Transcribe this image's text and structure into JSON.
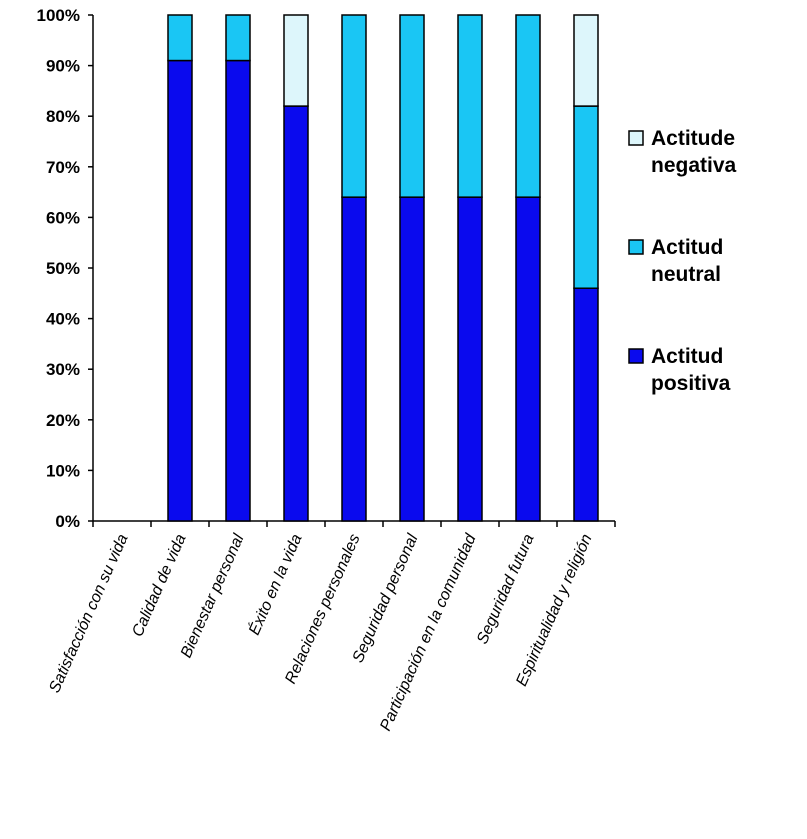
{
  "chart_data": {
    "type": "bar",
    "stacked": true,
    "percent": true,
    "categories": [
      "Satisfacción con su vida",
      "Calidad de vida",
      "Bienestar personal",
      "Éxito en la vida",
      "Relaciones personales",
      "Seguridad personal",
      "Participación en la comunidad",
      "Seguridad futura",
      "Espiritualidad y religión"
    ],
    "series": [
      {
        "name": "Actitud positiva",
        "color": "#0a0aee",
        "values": [
          0,
          91,
          91,
          82,
          64,
          64,
          64,
          64,
          46
        ]
      },
      {
        "name": "Actitud neutral",
        "color": "#1ac6f4",
        "values": [
          0,
          9,
          9,
          0,
          36,
          36,
          36,
          36,
          36
        ]
      },
      {
        "name": "Actitude negativa",
        "color": "#ddf6fb",
        "values": [
          0,
          0,
          0,
          18,
          0,
          0,
          0,
          0,
          18
        ]
      }
    ],
    "ylim": [
      0,
      100
    ],
    "yticks": [
      "0%",
      "10%",
      "20%",
      "30%",
      "40%",
      "50%",
      "60%",
      "70%",
      "80%",
      "90%",
      "100%"
    ],
    "grid": false,
    "legend_position": "right",
    "legend": [
      {
        "lines": [
          "Actitude",
          "negativa"
        ],
        "color": "#ddf6fb"
      },
      {
        "lines": [
          "Actitud",
          "neutral"
        ],
        "color": "#1ac6f4"
      },
      {
        "lines": [
          "Actitud",
          "positiva"
        ],
        "color": "#0a0aee"
      }
    ]
  }
}
